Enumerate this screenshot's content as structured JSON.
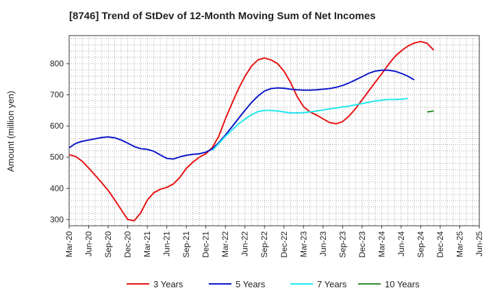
{
  "chart_data": {
    "type": "line",
    "title": "[8746]  Trend of StDev of 12-Month Moving Sum of Net Incomes",
    "ylabel": "Amount (million yen)",
    "xlabel": "",
    "ylim": [
      280,
      890
    ],
    "yticks": [
      300,
      400,
      500,
      600,
      700,
      800
    ],
    "xticks": [
      "Mar-20",
      "Jun-20",
      "Sep-20",
      "Dec-20",
      "Mar-21",
      "Jun-21",
      "Sep-21",
      "Dec-21",
      "Mar-22",
      "Jun-22",
      "Sep-22",
      "Dec-22",
      "Mar-23",
      "Jun-23",
      "Sep-23",
      "Dec-23",
      "Mar-24",
      "Jun-24",
      "Sep-24",
      "Dec-24",
      "Mar-25",
      "Jun-25"
    ],
    "grid": true,
    "legend_position": "bottom",
    "series": [
      {
        "name": "3 Years",
        "color": "#e81010",
        "values": [
          508,
          502,
          487,
          465,
          442,
          418,
          393,
          363,
          331,
          300,
          296,
          322,
          362,
          386,
          397,
          403,
          414,
          435,
          464,
          484,
          500,
          511,
          531,
          568,
          623,
          672,
          719,
          759,
          792,
          812,
          818,
          812,
          800,
          776,
          740,
          695,
          662,
          645,
          635,
          623,
          611,
          607,
          614,
          632,
          656,
          684,
          712,
          740,
          767,
          796,
          822,
          841,
          856,
          866,
          871,
          865,
          843
        ]
      },
      {
        "name": "5 Years",
        "color": "#0a14c8",
        "values": [
          530,
          544,
          551,
          555,
          559,
          563,
          565,
          562,
          555,
          545,
          534,
          527,
          525,
          519,
          507,
          496,
          494,
          501,
          506,
          509,
          511,
          516,
          527,
          547,
          571,
          597,
          624,
          650,
          675,
          696,
          712,
          720,
          722,
          721,
          718,
          716,
          715,
          715,
          716,
          718,
          720,
          724,
          730,
          738,
          748,
          758,
          769,
          776,
          779,
          779,
          776,
          769,
          760,
          748
        ]
      },
      {
        "name": "7 Years",
        "color": "#1ee8f0",
        "values": [
          null,
          null,
          null,
          null,
          null,
          null,
          null,
          null,
          null,
          null,
          null,
          null,
          null,
          null,
          null,
          null,
          null,
          null,
          null,
          null,
          null,
          null,
          522,
          544,
          567,
          587,
          606,
          622,
          636,
          646,
          650,
          650,
          648,
          645,
          642,
          642,
          643,
          645,
          648,
          651,
          655,
          658,
          661,
          664,
          668,
          672,
          676,
          680,
          683,
          685,
          685,
          686,
          688
        ]
      },
      {
        "name": "10 Years",
        "color": "#2a8a2a",
        "values": [
          null,
          null,
          null,
          null,
          null,
          null,
          null,
          null,
          null,
          null,
          null,
          null,
          null,
          null,
          null,
          null,
          null,
          null,
          null,
          null,
          null,
          null,
          null,
          null,
          null,
          null,
          null,
          null,
          null,
          null,
          null,
          null,
          null,
          null,
          null,
          null,
          null,
          null,
          null,
          null,
          null,
          null,
          null,
          null,
          null,
          null,
          null,
          null,
          null,
          null,
          null,
          null,
          null,
          null,
          null,
          645,
          648
        ]
      }
    ]
  }
}
